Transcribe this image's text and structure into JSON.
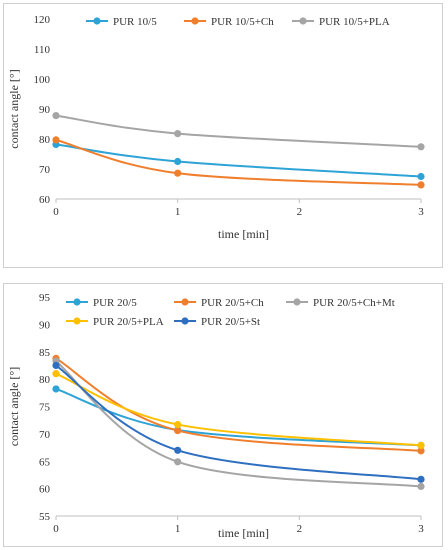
{
  "chart_data": [
    {
      "type": "line",
      "title": "",
      "xlabel": "time [min]",
      "ylabel": "contact angle [°]",
      "x": [
        0,
        1,
        3
      ],
      "x_ticks": [
        0,
        1,
        2,
        3
      ],
      "ylim": [
        60,
        120
      ],
      "y_ticks": [
        60,
        70,
        80,
        90,
        100,
        110,
        120
      ],
      "grid": false,
      "legend_position": "top",
      "series": [
        {
          "name": "PUR 10/5",
          "color": "#2ea3d6",
          "values": [
            78.2,
            72.5,
            67.5
          ]
        },
        {
          "name": "PUR 10/5+Ch",
          "color": "#f07f2d",
          "values": [
            79.7,
            68.6,
            64.7
          ]
        },
        {
          "name": "PUR 10/5+PLA",
          "color": "#a5a5a5",
          "values": [
            87.8,
            81.8,
            77.4
          ]
        }
      ]
    },
    {
      "type": "line",
      "title": "",
      "xlabel": "time [min]",
      "ylabel": "contact angle [°]",
      "x": [
        0,
        1,
        3
      ],
      "x_ticks": [
        0,
        1,
        2,
        3
      ],
      "ylim": [
        55,
        95
      ],
      "y_ticks": [
        55,
        60,
        65,
        70,
        75,
        80,
        85,
        90,
        95
      ],
      "grid": false,
      "legend_position": "top",
      "series": [
        {
          "name": "PUR 20/5",
          "color": "#2ea3d6",
          "values": [
            78.2,
            70.7,
            67.9
          ]
        },
        {
          "name": "PUR 20/5+Ch",
          "color": "#f07f2d",
          "values": [
            83.8,
            70.6,
            66.9
          ]
        },
        {
          "name": "PUR 20/5+Ch+Mt",
          "color": "#a5a5a5",
          "values": [
            83.3,
            64.9,
            60.4
          ]
        },
        {
          "name": "PUR 20/5+PLA",
          "color": "#ffc000",
          "values": [
            81.0,
            71.7,
            67.9
          ]
        },
        {
          "name": "PUR 20/5+St",
          "color": "#2e6fc0",
          "values": [
            82.5,
            67.0,
            61.7
          ]
        }
      ]
    }
  ]
}
